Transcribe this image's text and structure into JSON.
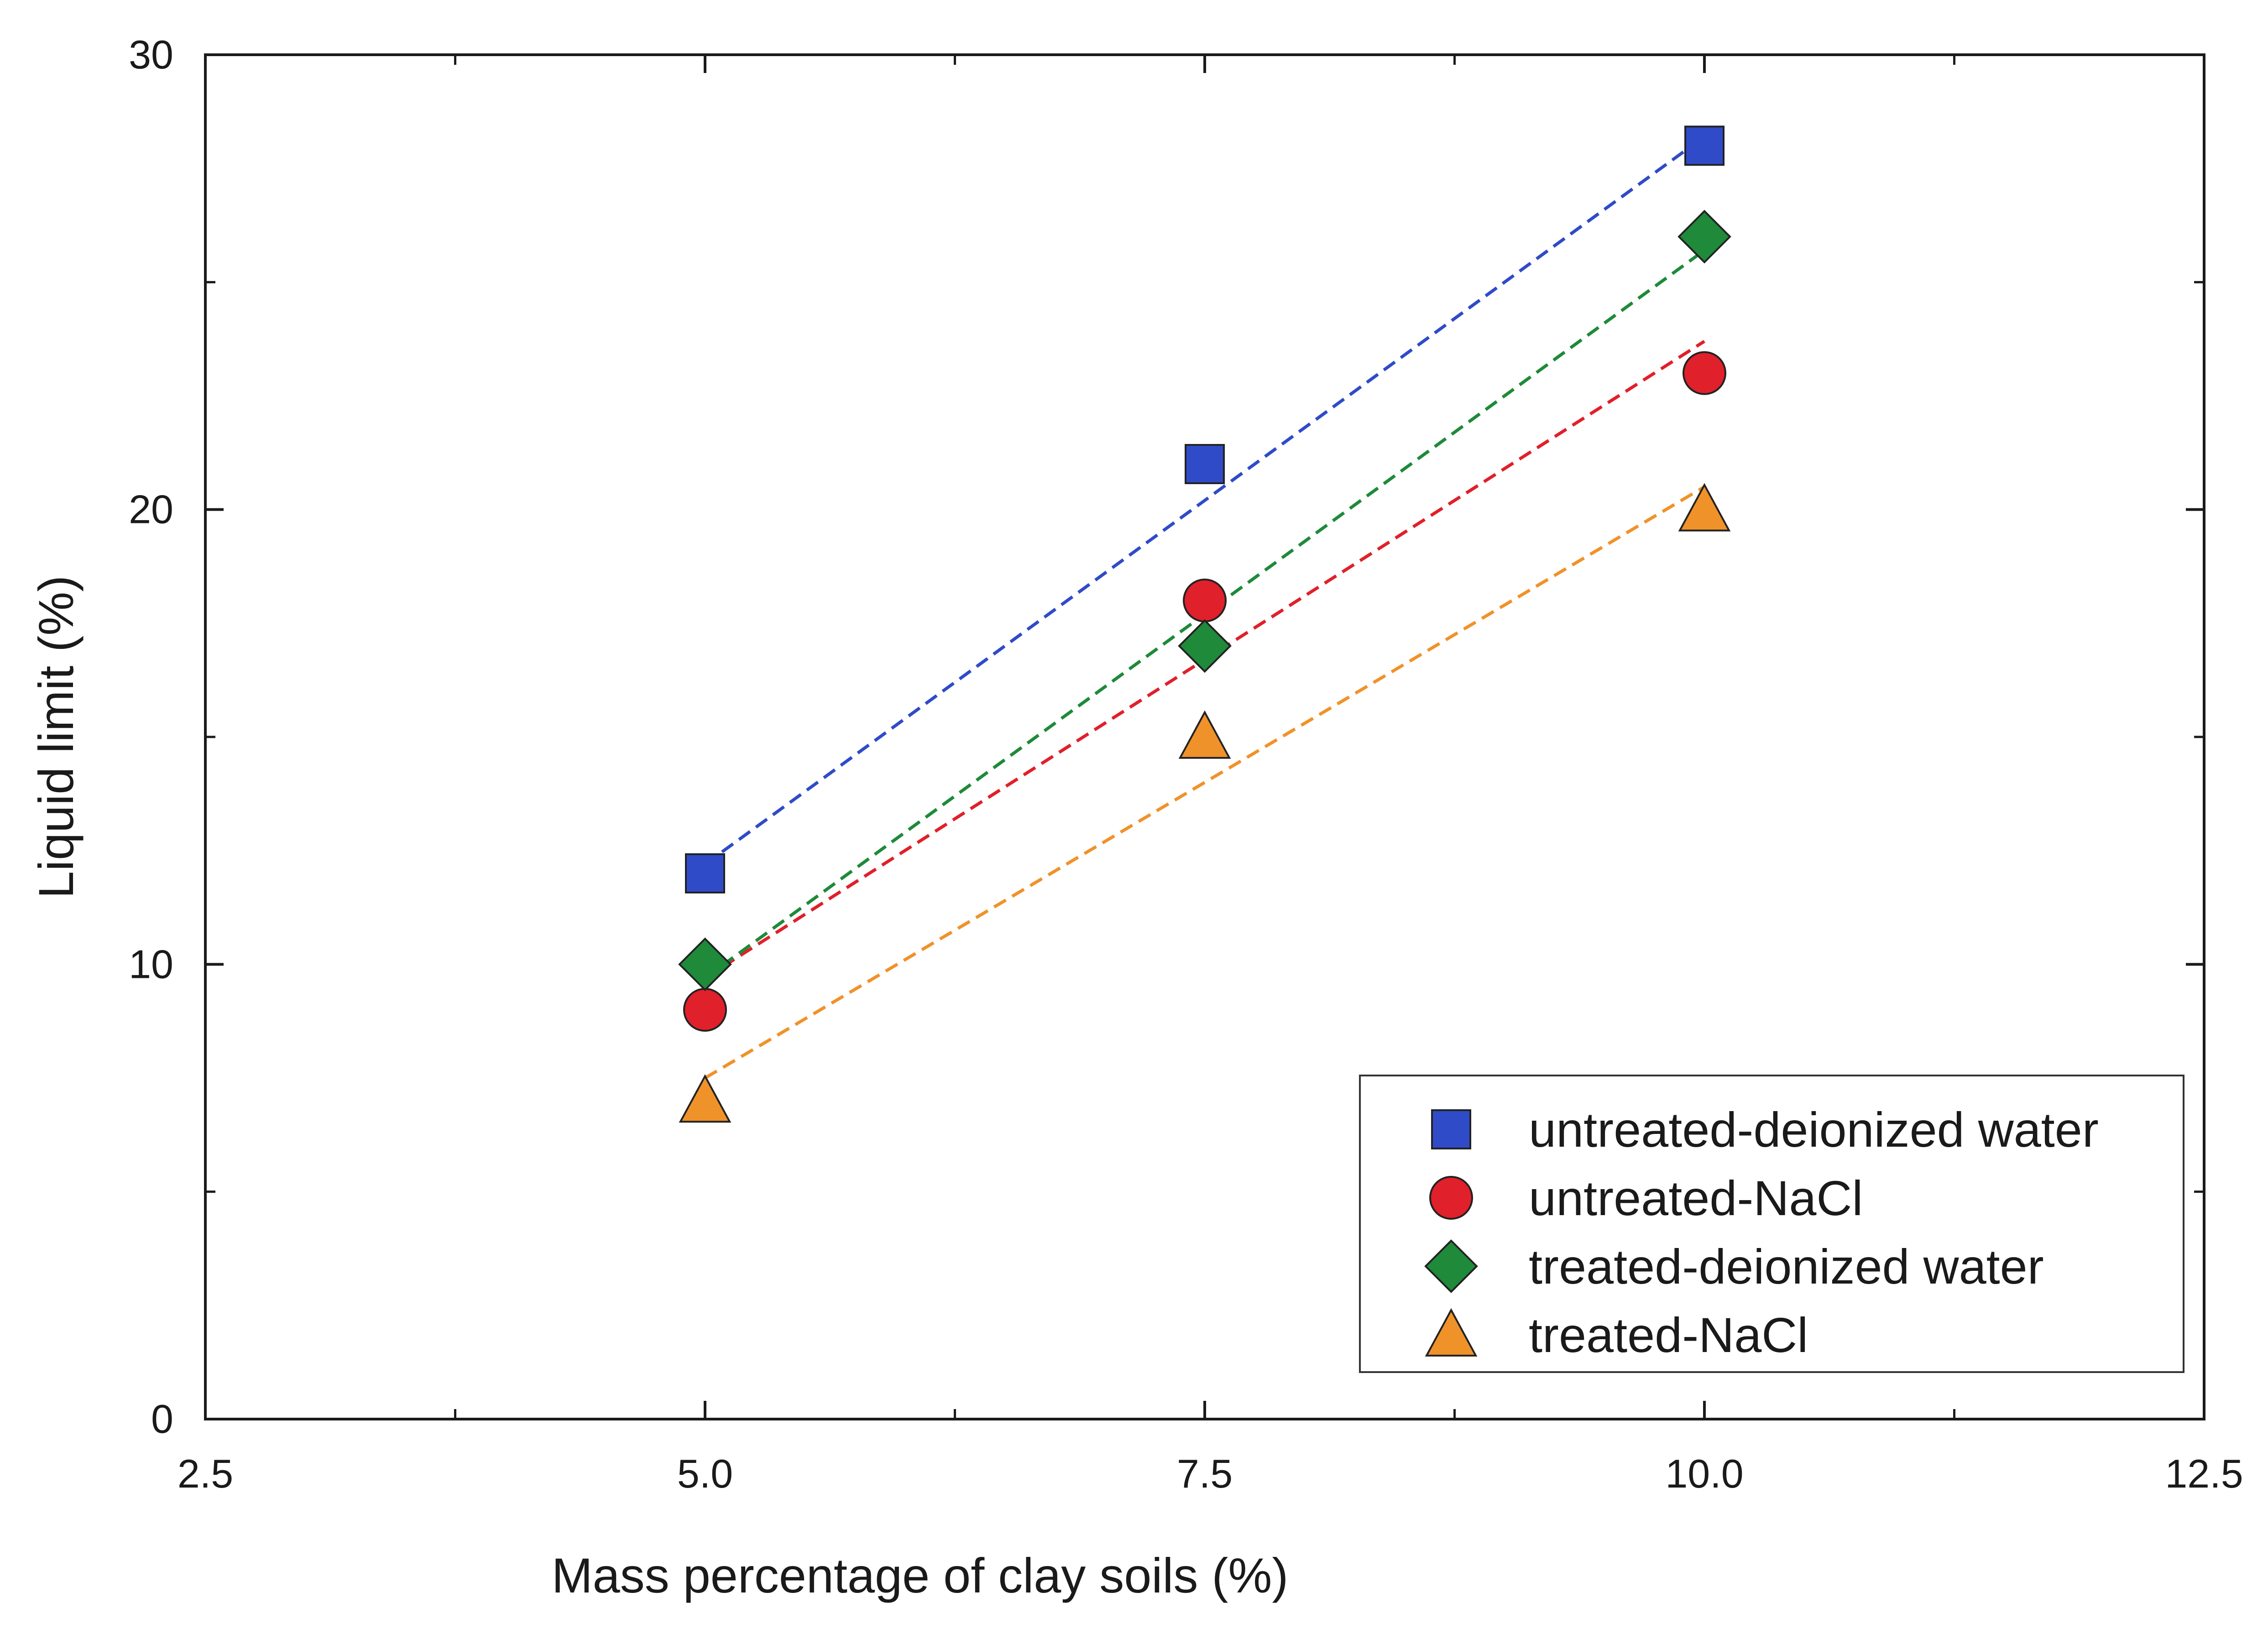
{
  "chart_data": {
    "type": "scatter",
    "title": "",
    "xlabel": "Mass percentage of clay soils (%)",
    "ylabel": "Liquid limit (%)",
    "xlim": [
      2.5,
      12.5
    ],
    "ylim": [
      0,
      30
    ],
    "x_major_ticks": [
      2.5,
      5.0,
      7.5,
      10.0,
      12.5
    ],
    "x_tick_labels": [
      "2.5",
      "5.0",
      "7.5",
      "10.0",
      "12.5"
    ],
    "y_major_ticks": [
      0,
      10,
      20,
      30
    ],
    "y_tick_labels": [
      "0",
      "10",
      "20",
      "30"
    ],
    "grid": false,
    "legend_position": "bottom-right",
    "trendlines": "dashed linear fit per series",
    "series": [
      {
        "name": "untreated-deionized water",
        "marker": "square",
        "color": "#2f4bc8",
        "x": [
          5.0,
          7.5,
          10.0
        ],
        "y": [
          12,
          21,
          28
        ],
        "fit": [
          [
            5.0,
            12.2
          ],
          [
            10.0,
            28.2
          ]
        ]
      },
      {
        "name": "untreated-NaCl",
        "marker": "circle",
        "color": "#e0202a",
        "x": [
          5.0,
          7.5,
          10.0
        ],
        "y": [
          9,
          18,
          23
        ],
        "fit": [
          [
            5.0,
            9.7
          ],
          [
            10.0,
            23.7
          ]
        ]
      },
      {
        "name": "treated-deionized water",
        "marker": "diamond",
        "color": "#1e8a3a",
        "x": [
          5.0,
          7.5,
          10.0
        ],
        "y": [
          10,
          17,
          26
        ],
        "fit": [
          [
            5.0,
            9.7
          ],
          [
            10.0,
            25.7
          ]
        ]
      },
      {
        "name": "treated-NaCl",
        "marker": "triangle",
        "color": "#f0922a",
        "x": [
          5.0,
          7.5,
          10.0
        ],
        "y": [
          7,
          15,
          20
        ],
        "fit": [
          [
            5.0,
            7.5
          ],
          [
            10.0,
            20.5
          ]
        ]
      }
    ]
  }
}
